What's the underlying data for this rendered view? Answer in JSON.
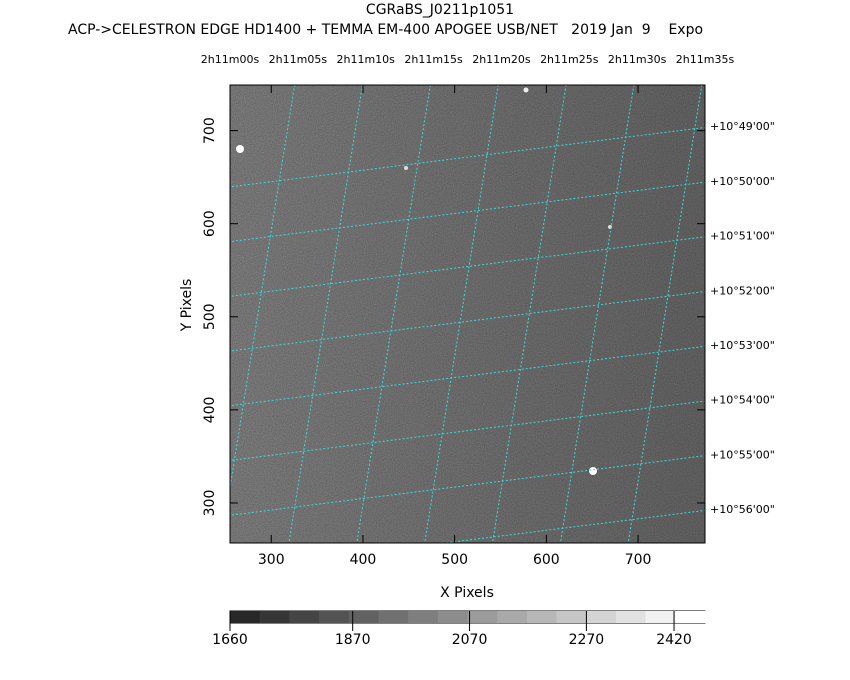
{
  "chart_data": {
    "type": "image",
    "title": "CGRaBS_J0211p1051",
    "subtitle": "ACP->CELESTRON EDGE HD1400 + TEMMA EM-400 APOGEE USB/NET   2019 Jan  9    Expo",
    "xlabel": "X Pixels",
    "ylabel": "Y Pixels",
    "xlim": [
      255,
      773
    ],
    "ylim": [
      257,
      749
    ],
    "xticks": [
      300,
      400,
      500,
      600,
      700
    ],
    "yticks": [
      300,
      400,
      500,
      600,
      700
    ],
    "ra_lim": [
      0,
      35
    ],
    "ra_ticks": [
      {
        "value": 0,
        "label": "2h11m00s"
      },
      {
        "value": 5,
        "label": "2h11m05s"
      },
      {
        "value": 10,
        "label": "2h11m10s"
      },
      {
        "value": 15,
        "label": "2h11m15s"
      },
      {
        "value": 20,
        "label": "2h11m20s"
      },
      {
        "value": 25,
        "label": "2h11m25s"
      },
      {
        "value": 30,
        "label": "2h11m30s"
      },
      {
        "value": 35,
        "label": "2h11m35s"
      }
    ],
    "dec_lim": [
      48.23,
      56.6
    ],
    "dec_ticks": [
      {
        "value": 49,
        "label": "+10°49'00\""
      },
      {
        "value": 50,
        "label": "+10°50'00\""
      },
      {
        "value": 51,
        "label": "+10°51'00\""
      },
      {
        "value": 52,
        "label": "+10°52'00\""
      },
      {
        "value": 53,
        "label": "+10°53'00\""
      },
      {
        "value": 54,
        "label": "+10°54'00\""
      },
      {
        "value": 55,
        "label": "+10°55'00\""
      },
      {
        "value": 56,
        "label": "+10°56'00\""
      }
    ],
    "grid_color": "#33dddd",
    "clim": [
      1660,
      2473
    ],
    "cticks": [
      1660,
      1870,
      2070,
      2270,
      2420
    ]
  }
}
